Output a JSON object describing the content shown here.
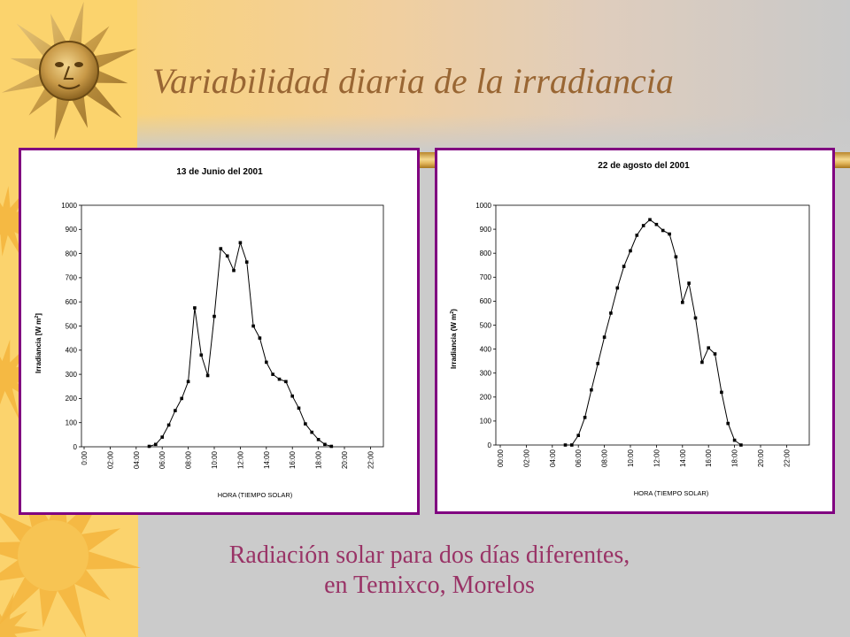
{
  "slide": {
    "title": "Variabilidad diaria de la irradiancia",
    "caption_line1": "Radiación solar para dos días diferentes,",
    "caption_line2": "en Temixco, Morelos"
  },
  "colors": {
    "title": "#996633",
    "caption": "#993366",
    "chart_border": "#800080",
    "background_left": "#fbd36d",
    "background_right": "#cbcbcb"
  },
  "icons": {
    "main_decoration": "sun-face-icon",
    "secondary_decoration": "sun-icon"
  },
  "chart_data": [
    {
      "type": "line",
      "title": "13 de Junio del 2001",
      "xlabel": "HORA (TIEMPO SOLAR)",
      "ylabel": "Irradiancia [W m",
      "ylabel_superscript": "2",
      "ylabel_suffix": "]",
      "x_ticks": [
        "0:00",
        "02:00",
        "04:00",
        "06:00",
        "08:00",
        "10:00",
        "12:00",
        "14:00",
        "16:00",
        "18:00",
        "20:00",
        "22:00"
      ],
      "y_ticks": [
        "0",
        "100",
        "200",
        "300",
        "400",
        "500",
        "600",
        "700",
        "800",
        "900",
        "1000"
      ],
      "ylim": [
        0,
        1000
      ],
      "grid": false,
      "legend": "none",
      "x": [
        "05:00",
        "05:30",
        "06:00",
        "06:30",
        "07:00",
        "07:30",
        "08:00",
        "08:30",
        "09:00",
        "09:30",
        "10:00",
        "10:30",
        "11:00",
        "11:30",
        "12:00",
        "12:30",
        "13:00",
        "13:30",
        "14:00",
        "14:30",
        "15:00",
        "15:30",
        "16:00",
        "16:30",
        "17:00",
        "17:30",
        "18:00",
        "18:30",
        "19:00"
      ],
      "series": [
        {
          "values": [
            2,
            10,
            40,
            90,
            150,
            200,
            270,
            575,
            380,
            295,
            540,
            820,
            790,
            730,
            845,
            765,
            500,
            450,
            350,
            300,
            280,
            270,
            210,
            160,
            95,
            60,
            30,
            10,
            2
          ]
        }
      ]
    },
    {
      "type": "line",
      "title": "22 de agosto del 2001",
      "xlabel": "HORA (TIEMPO SOLAR)",
      "ylabel": "Irradiancia (W m",
      "ylabel_superscript": "2",
      "ylabel_suffix": ")",
      "x_ticks": [
        "00:00",
        "02:00",
        "04:00",
        "06:00",
        "08:00",
        "10:00",
        "12:00",
        "14:00",
        "16:00",
        "18:00",
        "20:00",
        "22:00"
      ],
      "y_ticks": [
        "0",
        "100",
        "200",
        "300",
        "400",
        "500",
        "600",
        "700",
        "800",
        "900",
        "1000"
      ],
      "ylim": [
        0,
        1000
      ],
      "grid": false,
      "legend": "none",
      "x": [
        "05:00",
        "05:30",
        "06:00",
        "06:30",
        "07:00",
        "07:30",
        "08:00",
        "08:30",
        "09:00",
        "09:30",
        "10:00",
        "10:30",
        "11:00",
        "11:30",
        "12:00",
        "12:30",
        "13:00",
        "13:30",
        "14:00",
        "14:30",
        "15:00",
        "15:30",
        "16:00",
        "16:30",
        "17:00",
        "17:30",
        "18:00",
        "18:30"
      ],
      "series": [
        {
          "values": [
            0,
            0,
            40,
            115,
            230,
            340,
            450,
            550,
            655,
            745,
            810,
            875,
            915,
            940,
            920,
            895,
            880,
            785,
            595,
            675,
            530,
            345,
            405,
            380,
            220,
            90,
            20,
            0
          ]
        }
      ]
    }
  ]
}
